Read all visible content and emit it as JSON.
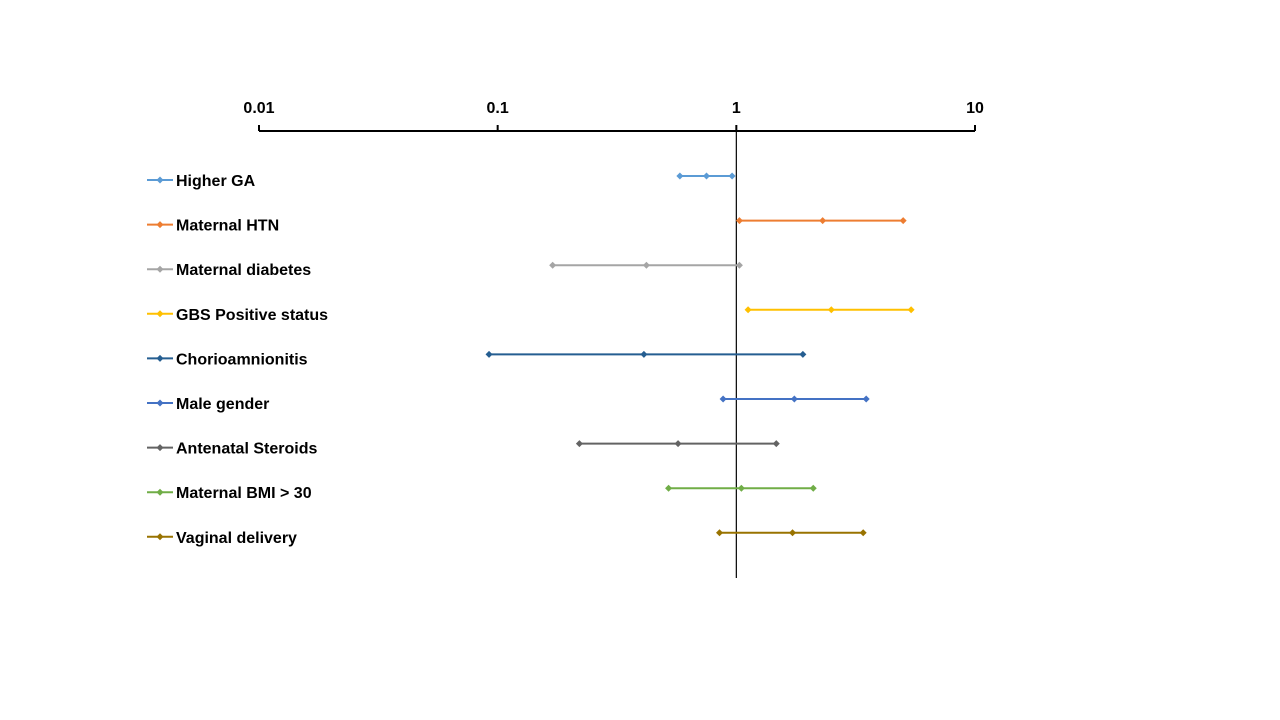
{
  "chart_data": {
    "type": "forest",
    "x_scale": "log",
    "xlim": [
      0.01,
      10
    ],
    "x_ticks": [
      {
        "value": 0.01,
        "label": "0.01"
      },
      {
        "value": 0.1,
        "label": "0.1"
      },
      {
        "value": 1,
        "label": "1"
      },
      {
        "value": 10,
        "label": "10"
      }
    ],
    "reference_line": 1,
    "grid": false,
    "legend_position": "left",
    "series": [
      {
        "name": "Higher GA",
        "color": "#5B9BD5",
        "lower": 0.58,
        "estimate": 0.75,
        "upper": 0.96
      },
      {
        "name": "Maternal HTN",
        "color": "#ED7D31",
        "lower": 1.03,
        "estimate": 2.3,
        "upper": 5.0
      },
      {
        "name": "Maternal diabetes",
        "color": "#A5A5A5",
        "lower": 0.17,
        "estimate": 0.42,
        "upper": 1.03
      },
      {
        "name": "GBS Positive status",
        "color": "#FFC000",
        "lower": 1.12,
        "estimate": 2.5,
        "upper": 5.4
      },
      {
        "name": "Chorioamnionitis",
        "color": "#255E91",
        "lower": 0.092,
        "estimate": 0.41,
        "upper": 1.9
      },
      {
        "name": "Male gender",
        "color": "#4472C4",
        "lower": 0.88,
        "estimate": 1.75,
        "upper": 3.5
      },
      {
        "name": "Antenatal Steroids",
        "color": "#636363",
        "lower": 0.22,
        "estimate": 0.57,
        "upper": 1.47
      },
      {
        "name": "Maternal BMI > 30",
        "color": "#70AD47",
        "lower": 0.52,
        "estimate": 1.05,
        "upper": 2.1
      },
      {
        "name": "Vaginal delivery",
        "color": "#997300",
        "lower": 0.85,
        "estimate": 1.72,
        "upper": 3.4
      }
    ]
  }
}
